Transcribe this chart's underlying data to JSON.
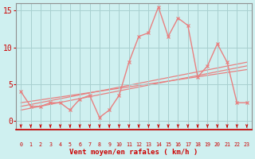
{
  "x": [
    0,
    1,
    2,
    3,
    4,
    5,
    6,
    7,
    8,
    9,
    10,
    11,
    12,
    13,
    14,
    15,
    16,
    17,
    18,
    19,
    20,
    21,
    22,
    23
  ],
  "y_line": [
    4,
    2,
    2,
    2.5,
    2.5,
    1.5,
    3,
    3.5,
    0.5,
    1.5,
    3.5,
    8,
    11.5,
    12,
    15.5,
    11.5,
    14,
    13,
    6,
    7.5,
    10.5,
    8,
    2.5,
    2.5
  ],
  "trend_lines": [
    [
      2.0,
      8.0
    ],
    [
      1.5,
      7.5
    ],
    [
      2.5,
      7.0
    ]
  ],
  "bg_color": "#cff0f0",
  "line_color": "#e88080",
  "grid_color": "#a8d0d0",
  "spine_color": "#909090",
  "text_color": "#cc0000",
  "arrow_color": "#cc0000",
  "xlabel": "Vent moyen/en rafales ( km/h )",
  "ylim": [
    -1.2,
    16
  ],
  "xlim": [
    -0.5,
    23.5
  ],
  "yticks": [
    0,
    5,
    10,
    15
  ],
  "xticks": [
    0,
    1,
    2,
    3,
    4,
    5,
    6,
    7,
    8,
    9,
    10,
    11,
    12,
    13,
    14,
    15,
    16,
    17,
    18,
    19,
    20,
    21,
    22,
    23
  ]
}
